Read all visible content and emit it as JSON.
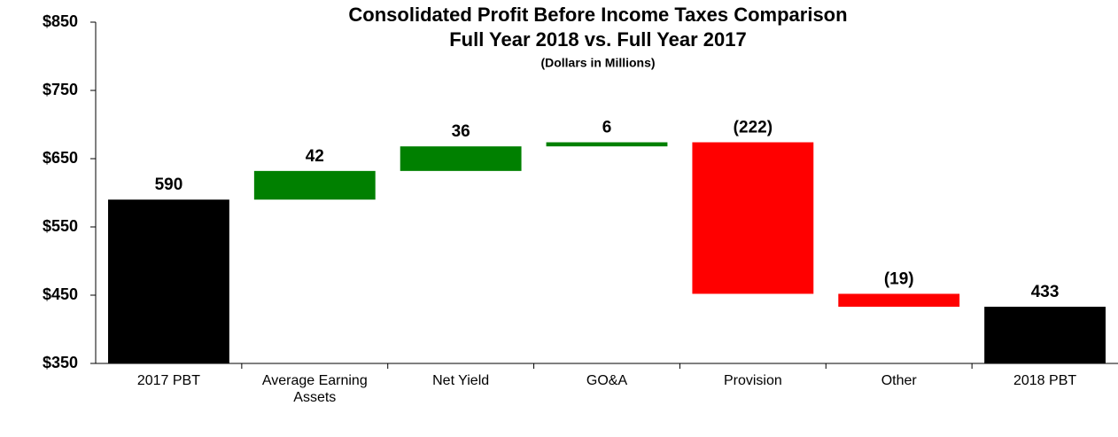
{
  "chart_data": {
    "type": "waterfall",
    "title": "Consolidated Profit Before Income Taxes Comparison",
    "subtitle": "Full Year 2018 vs. Full Year 2017",
    "note": "(Dollars in Millions)",
    "categories": [
      "2017 PBT",
      "Average Earning Assets",
      "Net Yield",
      "GO&A",
      "Provision",
      "Other",
      "2018 PBT"
    ],
    "values": [
      590,
      42,
      36,
      6,
      -222,
      -19,
      433
    ],
    "value_labels": [
      "590",
      "42",
      "36",
      "6",
      "(222)",
      "(19)",
      "433"
    ],
    "colors": [
      "#000000",
      "#008000",
      "#008000",
      "#008000",
      "#ff0000",
      "#ff0000",
      "#000000"
    ],
    "ylim": [
      350,
      850
    ],
    "yticks": [
      {
        "value": 350,
        "label": "$350"
      },
      {
        "value": 450,
        "label": "$450"
      },
      {
        "value": 550,
        "label": "$550"
      },
      {
        "value": 650,
        "label": "$650"
      },
      {
        "value": 750,
        "label": "$750"
      },
      {
        "value": 850,
        "label": "$850"
      }
    ],
    "grid": false
  }
}
